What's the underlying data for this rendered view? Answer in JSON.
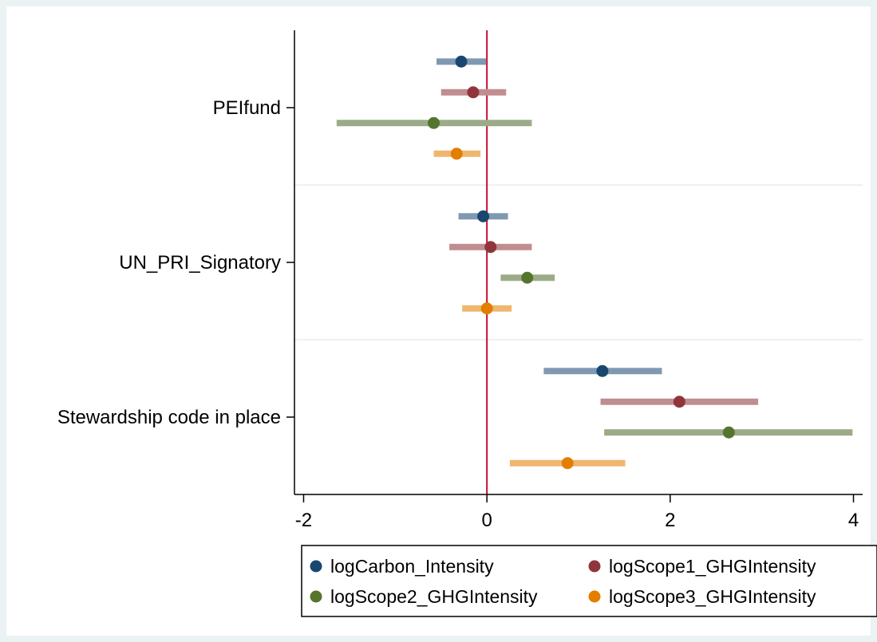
{
  "chart_data": {
    "type": "coefficient-plot",
    "title": "",
    "xlabel": "",
    "ylabel": "",
    "xlim": [
      -2.1,
      4.1
    ],
    "xticks": [
      -2,
      0,
      2,
      4
    ],
    "xtick_labels": [
      "-2",
      "0",
      "2",
      "4"
    ],
    "reference_line_x": 0,
    "reference_line_color": "#c8102e",
    "categories": [
      "PEIfund",
      "UN_PRI_Signatory",
      "Stewardship code in place"
    ],
    "legend": {
      "placement": "bottom",
      "columns": 2
    },
    "series": [
      {
        "name": "logCarbon_Intensity",
        "color": "#1a476f",
        "ci_color": "#8099b3",
        "estimates": [
          -0.28,
          -0.04,
          1.26
        ],
        "ci_low": [
          -0.55,
          -0.31,
          0.62
        ],
        "ci_high": [
          -0.01,
          0.23,
          1.91
        ]
      },
      {
        "name": "logScope1_GHGIntensity",
        "color": "#90353b",
        "ci_color": "#c08d90",
        "estimates": [
          -0.15,
          0.04,
          2.1
        ],
        "ci_low": [
          -0.5,
          -0.41,
          1.24
        ],
        "ci_high": [
          0.21,
          0.49,
          2.96
        ]
      },
      {
        "name": "logScope2_GHGIntensity",
        "color": "#55752f",
        "ci_color": "#9bab88",
        "estimates": [
          -0.58,
          0.44,
          2.64
        ],
        "ci_low": [
          -1.64,
          0.15,
          1.28
        ],
        "ci_high": [
          0.49,
          0.74,
          3.99
        ]
      },
      {
        "name": "logScope3_GHGIntensity",
        "color": "#e37e00",
        "ci_color": "#efb66f",
        "estimates": [
          -0.33,
          0,
          0.88
        ],
        "ci_low": [
          -0.58,
          -0.27,
          0.25
        ],
        "ci_high": [
          -0.07,
          0.27,
          1.51
        ]
      }
    ]
  }
}
